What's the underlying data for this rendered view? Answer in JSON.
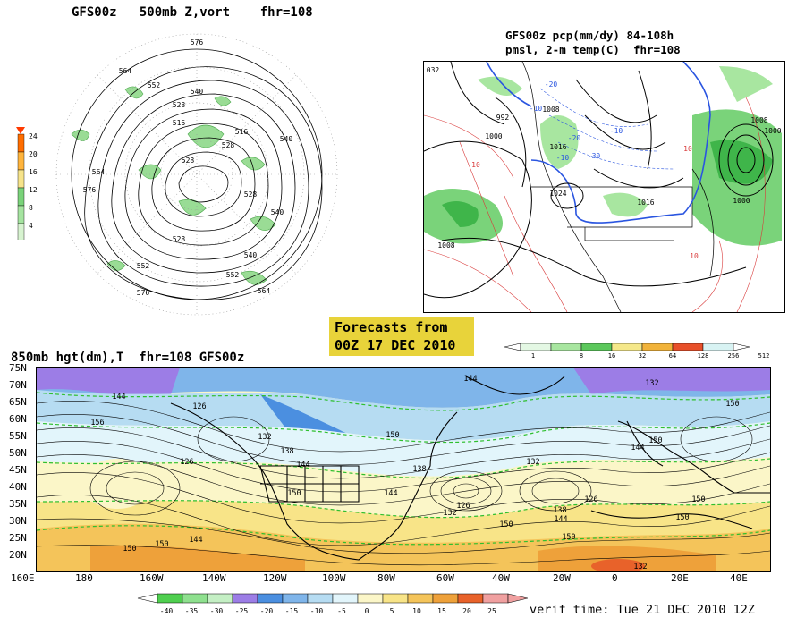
{
  "panels": {
    "polar": {
      "title": "GFS00z   500mb Z,vort    fhr=108",
      "colorbar_labels": [
        "24",
        "20",
        "16",
        "12",
        "8",
        "4"
      ],
      "colorbar_colors": [
        "#ff6d00",
        "#ffb43c",
        "#f6e38a",
        "#7ad37a",
        "#a5e4a0",
        "#d7f3d0"
      ],
      "contour_labels": [
        "576",
        "564",
        "552",
        "540",
        "528",
        "516",
        "528",
        "564",
        "576",
        "540",
        "528",
        "552",
        "540",
        "552",
        "564",
        "576",
        "528",
        "516",
        "528",
        "540"
      ]
    },
    "precip": {
      "title_line1": "GFS00z pcp(mm/dy) 84-108h",
      "title_line2": "pmsl, 2-m temp(C)  fhr=108",
      "labels": [
        "032",
        "992",
        "1000",
        "1008",
        "1016",
        "1024",
        "1008",
        "1000",
        "1008",
        "1016",
        "-10",
        "-20",
        "10",
        "-10",
        "-20",
        "-30",
        "-10",
        "10",
        "1000",
        "10"
      ],
      "legend_values": [
        "1",
        "8",
        "16",
        "32",
        "64",
        "128",
        "256",
        "512"
      ],
      "legend_colors": [
        "#e4f8e4",
        "#a8e6a0",
        "#5cc85c",
        "#f5e88a",
        "#f1b33a",
        "#e8502a",
        "#d8f3f3"
      ]
    },
    "banner": {
      "line1": "Forecasts from",
      "line2": "00Z 17 DEC 2010"
    },
    "bottom": {
      "title": "850mb hgt(dm),T  fhr=108 GFS00z",
      "lat_labels": [
        "75N",
        "70N",
        "65N",
        "60N",
        "55N",
        "50N",
        "45N",
        "40N",
        "35N",
        "30N",
        "25N",
        "20N"
      ],
      "lon_labels": [
        "160E",
        "180",
        "160W",
        "140W",
        "120W",
        "100W",
        "80W",
        "60W",
        "40W",
        "20W",
        "0",
        "20E",
        "40E"
      ],
      "contour_labels": [
        "144",
        "126",
        "156",
        "132",
        "138",
        "144",
        "150",
        "126",
        "150",
        "144",
        "138",
        "126",
        "132",
        "150",
        "144",
        "132",
        "126",
        "138",
        "144",
        "150",
        "132",
        "150",
        "144",
        "150",
        "132",
        "144",
        "150",
        "150",
        "150",
        "150"
      ],
      "temp_values": [
        "-40",
        "-35",
        "-30",
        "-25",
        "-20",
        "-15",
        "-10",
        "-5",
        "0",
        "5",
        "10",
        "15",
        "20",
        "25"
      ],
      "temp_colors": [
        "#4fcf4f",
        "#8ee08e",
        "#c4efc4",
        "#9c7de6",
        "#4b8fe0",
        "#7fb5ea",
        "#b6dcf2",
        "#e2f5fb",
        "#fbf6c8",
        "#f8e488",
        "#f4c45a",
        "#eea13a",
        "#e8622a",
        "#f0a0a0"
      ],
      "verif_time": "verif time: Tue 21 DEC 2010 12Z"
    }
  }
}
